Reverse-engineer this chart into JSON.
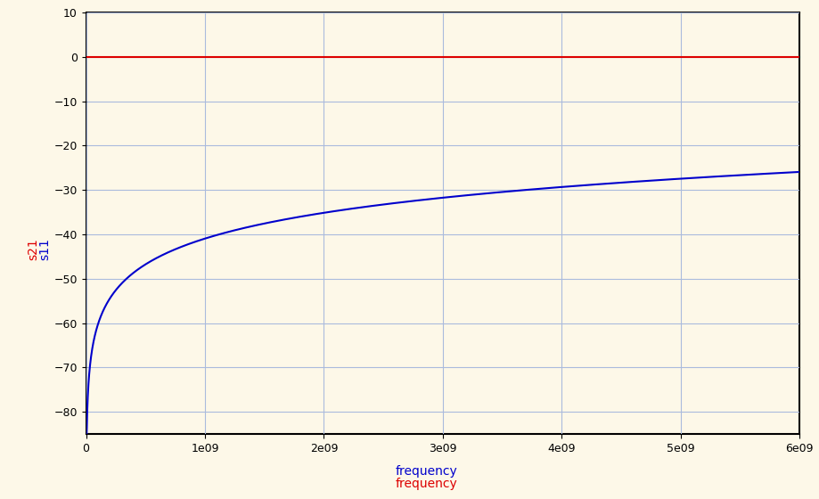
{
  "background_color": "#fdf8e8",
  "plot_bg_color": "#fdf8e8",
  "grid_color": "#aabbdd",
  "x_min": 0,
  "x_max": 6000000000,
  "y_min": -85,
  "y_max": 10,
  "y_ticks": [
    10,
    0,
    -10,
    -20,
    -30,
    -40,
    -50,
    -60,
    -70,
    -80
  ],
  "x_ticks": [
    0,
    1000000000,
    2000000000,
    3000000000,
    4000000000,
    5000000000,
    6000000000
  ],
  "x_tick_labels": [
    "0",
    "1e09",
    "2e09",
    "3e09",
    "4e09",
    "5e09",
    "6e09"
  ],
  "s21_color": "#0000cc",
  "s11_color": "#dd0000",
  "ylabel_s21": "s21",
  "ylabel_s11": "s11",
  "xlabel_blue": "frequency",
  "xlabel_red": "frequency",
  "s21_a": 8.38,
  "s21_b": -214.6,
  "s11_value": 0.0,
  "line_width": 1.5,
  "axis_color": "#000000",
  "tick_color": "#000000",
  "tick_label_color": "#000000",
  "font_size_tick": 9,
  "font_size_label": 10
}
